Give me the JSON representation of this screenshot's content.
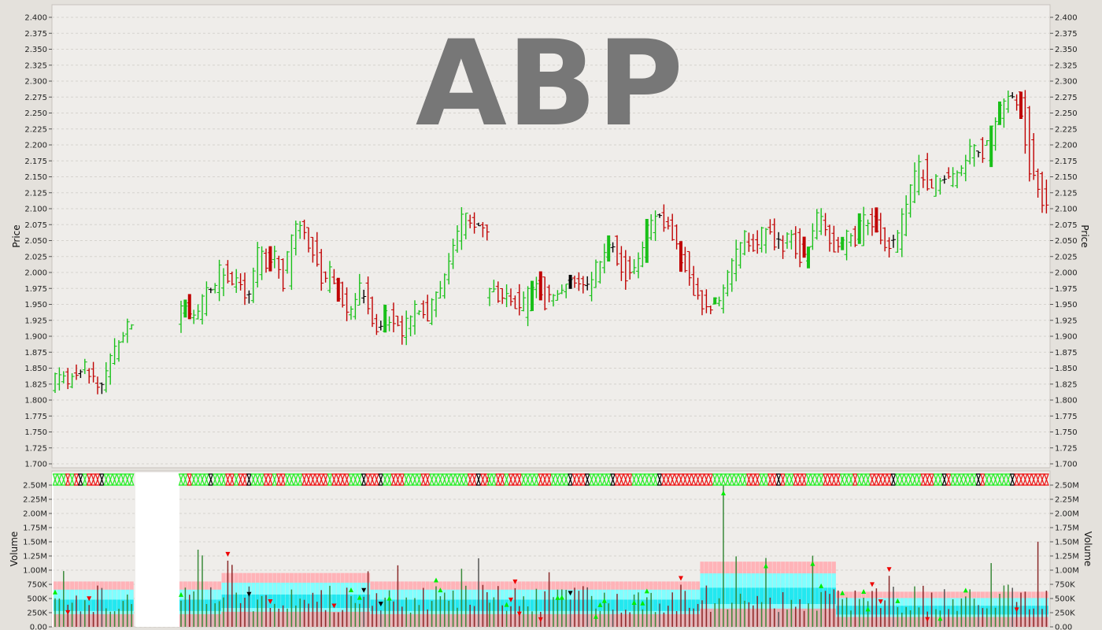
{
  "chart_data": {
    "type": "candlestick",
    "symbol": "ABP",
    "price_panel": {
      "ylabel": "Price",
      "ylim": [
        1.7,
        2.4
      ],
      "ticks": [
        "1.700",
        "1.725",
        "1.750",
        "1.775",
        "1.800",
        "1.825",
        "1.850",
        "1.875",
        "1.900",
        "1.925",
        "1.950",
        "1.975",
        "2.000",
        "2.025",
        "2.050",
        "2.075",
        "2.100",
        "2.125",
        "2.150",
        "2.175",
        "2.200",
        "2.225",
        "2.250",
        "2.275",
        "2.300",
        "2.325",
        "2.350",
        "2.375",
        "2.400"
      ],
      "grid": true,
      "segments": [
        {
          "name": "segment-1",
          "points": [
            [
              1.815,
              1.84
            ],
            [
              1.83,
              1.845
            ],
            [
              1.84,
              1.83
            ],
            [
              1.825,
              1.835
            ],
            [
              1.835,
              1.845
            ],
            [
              1.84,
              1.855
            ],
            [
              1.85,
              1.845
            ],
            [
              1.84,
              1.83
            ],
            [
              1.83,
              1.82
            ],
            [
              1.82,
              1.83
            ],
            [
              1.83,
              1.86
            ],
            [
              1.86,
              1.88
            ],
            [
              1.88,
              1.9
            ],
            [
              1.9,
              1.92
            ],
            [
              1.92,
              1.91
            ]
          ]
        },
        {
          "name": "segment-2",
          "points": [
            [
              1.92,
              1.95
            ],
            [
              1.95,
              1.93
            ],
            [
              1.93,
              1.92
            ],
            [
              1.92,
              1.99
            ],
            [
              1.99,
              1.96
            ],
            [
              1.96,
              2.02
            ],
            [
              2.02,
              1.98
            ],
            [
              1.98,
              2.0
            ],
            [
              2.0,
              1.96
            ],
            [
              1.96,
              1.98
            ],
            [
              1.98,
              2.05
            ],
            [
              2.05,
              2.01
            ],
            [
              2.01,
              2.03
            ],
            [
              2.03,
              1.98
            ],
            [
              1.98,
              2.06
            ],
            [
              2.06,
              2.08
            ],
            [
              2.08,
              2.05
            ],
            [
              2.05,
              2.02
            ],
            [
              2.02,
              1.98
            ],
            [
              1.98,
              2.0
            ],
            [
              2.0,
              1.97
            ],
            [
              1.97,
              1.93
            ],
            [
              1.93,
              1.96
            ],
            [
              1.96,
              1.98
            ],
            [
              1.98,
              1.93
            ],
            [
              1.93,
              1.91
            ],
            [
              1.91,
              1.94
            ],
            [
              1.94,
              1.92
            ],
            [
              1.92,
              1.9
            ],
            [
              1.9,
              1.93
            ],
            [
              1.93,
              1.96
            ],
            [
              1.96,
              1.92
            ],
            [
              1.92,
              1.95
            ],
            [
              1.95,
              1.98
            ],
            [
              1.98,
              2.02
            ],
            [
              2.02,
              2.06
            ],
            [
              2.06,
              2.09
            ],
            [
              2.09,
              2.08
            ],
            [
              2.08,
              2.07
            ],
            [
              2.07,
              2.06
            ]
          ]
        },
        {
          "name": "segment-3",
          "points": [
            [
              1.96,
              1.98
            ],
            [
              1.98,
              1.95
            ],
            [
              1.95,
              1.97
            ],
            [
              1.97,
              1.93
            ],
            [
              1.93,
              1.96
            ],
            [
              1.96,
              1.99
            ],
            [
              1.99,
              1.95
            ],
            [
              1.95,
              1.97
            ],
            [
              1.97,
              1.98
            ],
            [
              1.98,
              2.0
            ],
            [
              2.0,
              1.97
            ],
            [
              1.97,
              1.99
            ],
            [
              1.99,
              2.02
            ],
            [
              2.02,
              2.05
            ],
            [
              2.05,
              2.02
            ],
            [
              2.02,
              1.99
            ],
            [
              1.99,
              2.01
            ],
            [
              2.01,
              2.06
            ],
            [
              2.06,
              2.1
            ],
            [
              2.1,
              2.08
            ],
            [
              2.08,
              2.05
            ],
            [
              2.05,
              2.02
            ],
            [
              2.02,
              1.98
            ],
            [
              1.98,
              1.95
            ],
            [
              1.95,
              1.94
            ],
            [
              1.94,
              1.96
            ],
            [
              1.96,
              2.0
            ],
            [
              2.0,
              2.03
            ],
            [
              2.03,
              2.06
            ],
            [
              2.06,
              2.03
            ],
            [
              2.03,
              2.08
            ],
            [
              2.08,
              2.05
            ],
            [
              2.05,
              2.04
            ],
            [
              2.04,
              2.06
            ],
            [
              2.06,
              2.02
            ],
            [
              2.02,
              2.05
            ],
            [
              2.05,
              2.09
            ],
            [
              2.09,
              2.06
            ],
            [
              2.06,
              2.03
            ],
            [
              2.03,
              2.06
            ],
            [
              2.06,
              2.05
            ],
            [
              2.05,
              2.1
            ],
            [
              2.1,
              2.07
            ],
            [
              2.07,
              2.05
            ],
            [
              2.05,
              2.03
            ],
            [
              2.03,
              2.08
            ],
            [
              2.08,
              2.13
            ],
            [
              2.13,
              2.17
            ],
            [
              2.17,
              2.12
            ],
            [
              2.12,
              2.15
            ],
            [
              2.15,
              2.14
            ],
            [
              2.14,
              2.15
            ],
            [
              2.15,
              2.18
            ],
            [
              2.18,
              2.2
            ],
            [
              2.2,
              2.18
            ],
            [
              2.18,
              2.23
            ],
            [
              2.23,
              2.27
            ],
            [
              2.27,
              2.28
            ],
            [
              2.28,
              2.27
            ],
            [
              2.27,
              2.17
            ],
            [
              2.17,
              2.13
            ],
            [
              2.13,
              2.1
            ]
          ]
        }
      ]
    },
    "volume_panel": {
      "ylabel": "Volume",
      "ylim": [
        0,
        2600000
      ],
      "ticks": [
        "0.00",
        "250K",
        "500K",
        "750K",
        "1.00M",
        "1.25M",
        "1.50M",
        "1.75M",
        "2.00M",
        "2.25M",
        "2.50M"
      ],
      "grid": true
    }
  },
  "colors": {
    "up": "#19c019",
    "down": "#c00000",
    "neutral": "#000000",
    "band_outer": "#ffb3b8",
    "band_middle": "#80ffff",
    "band_inner": "#22e8f0",
    "background": "#efedea",
    "frame": "#e4e1dc"
  }
}
